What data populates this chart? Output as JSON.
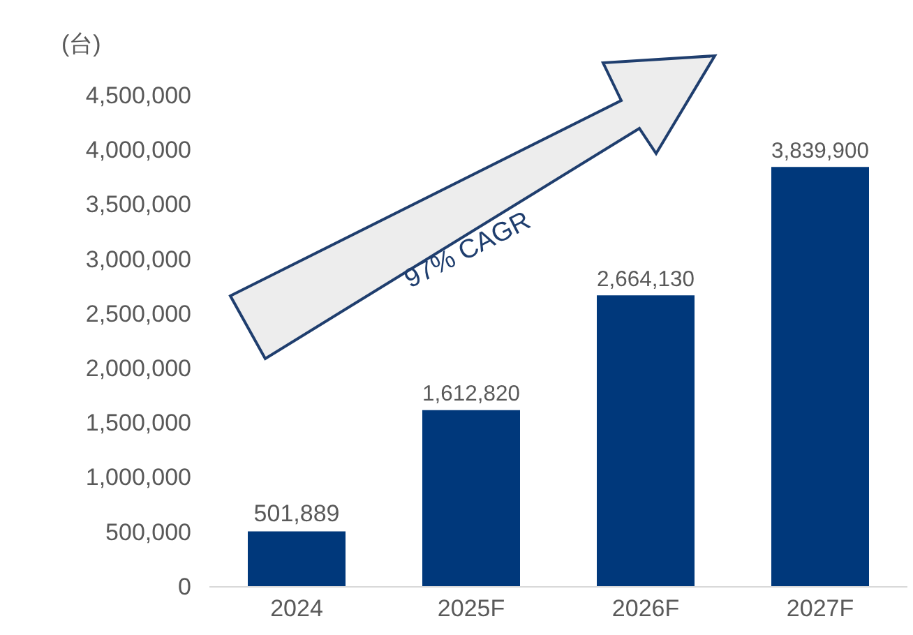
{
  "chart_data": {
    "type": "bar",
    "ylabel": "(台)",
    "categories": [
      "2024",
      "2025F",
      "2026F",
      "2027F"
    ],
    "values": [
      501889,
      1612820,
      2664130,
      3839900
    ],
    "color": "#00387b",
    "value_labels": [
      "501,889",
      "1,612,820",
      "2,664,130",
      "3,839,900"
    ],
    "ylim": [
      0,
      4500000
    ],
    "yticks": [
      {
        "value": 0,
        "label": "0"
      },
      {
        "value": 500000,
        "label": "500,000"
      },
      {
        "value": 1000000,
        "label": "1,000,000"
      },
      {
        "value": 1500000,
        "label": "1,500,000"
      },
      {
        "value": 2000000,
        "label": "2,000,000"
      },
      {
        "value": 2500000,
        "label": "2,500,000"
      },
      {
        "value": 3000000,
        "label": "3,000,000"
      },
      {
        "value": 3500000,
        "label": "3,500,000"
      },
      {
        "value": 4000000,
        "label": "4,000,000"
      },
      {
        "value": 4500000,
        "label": "4,500,000"
      }
    ],
    "grid": false,
    "annotations": [
      "97% CAGR"
    ]
  }
}
